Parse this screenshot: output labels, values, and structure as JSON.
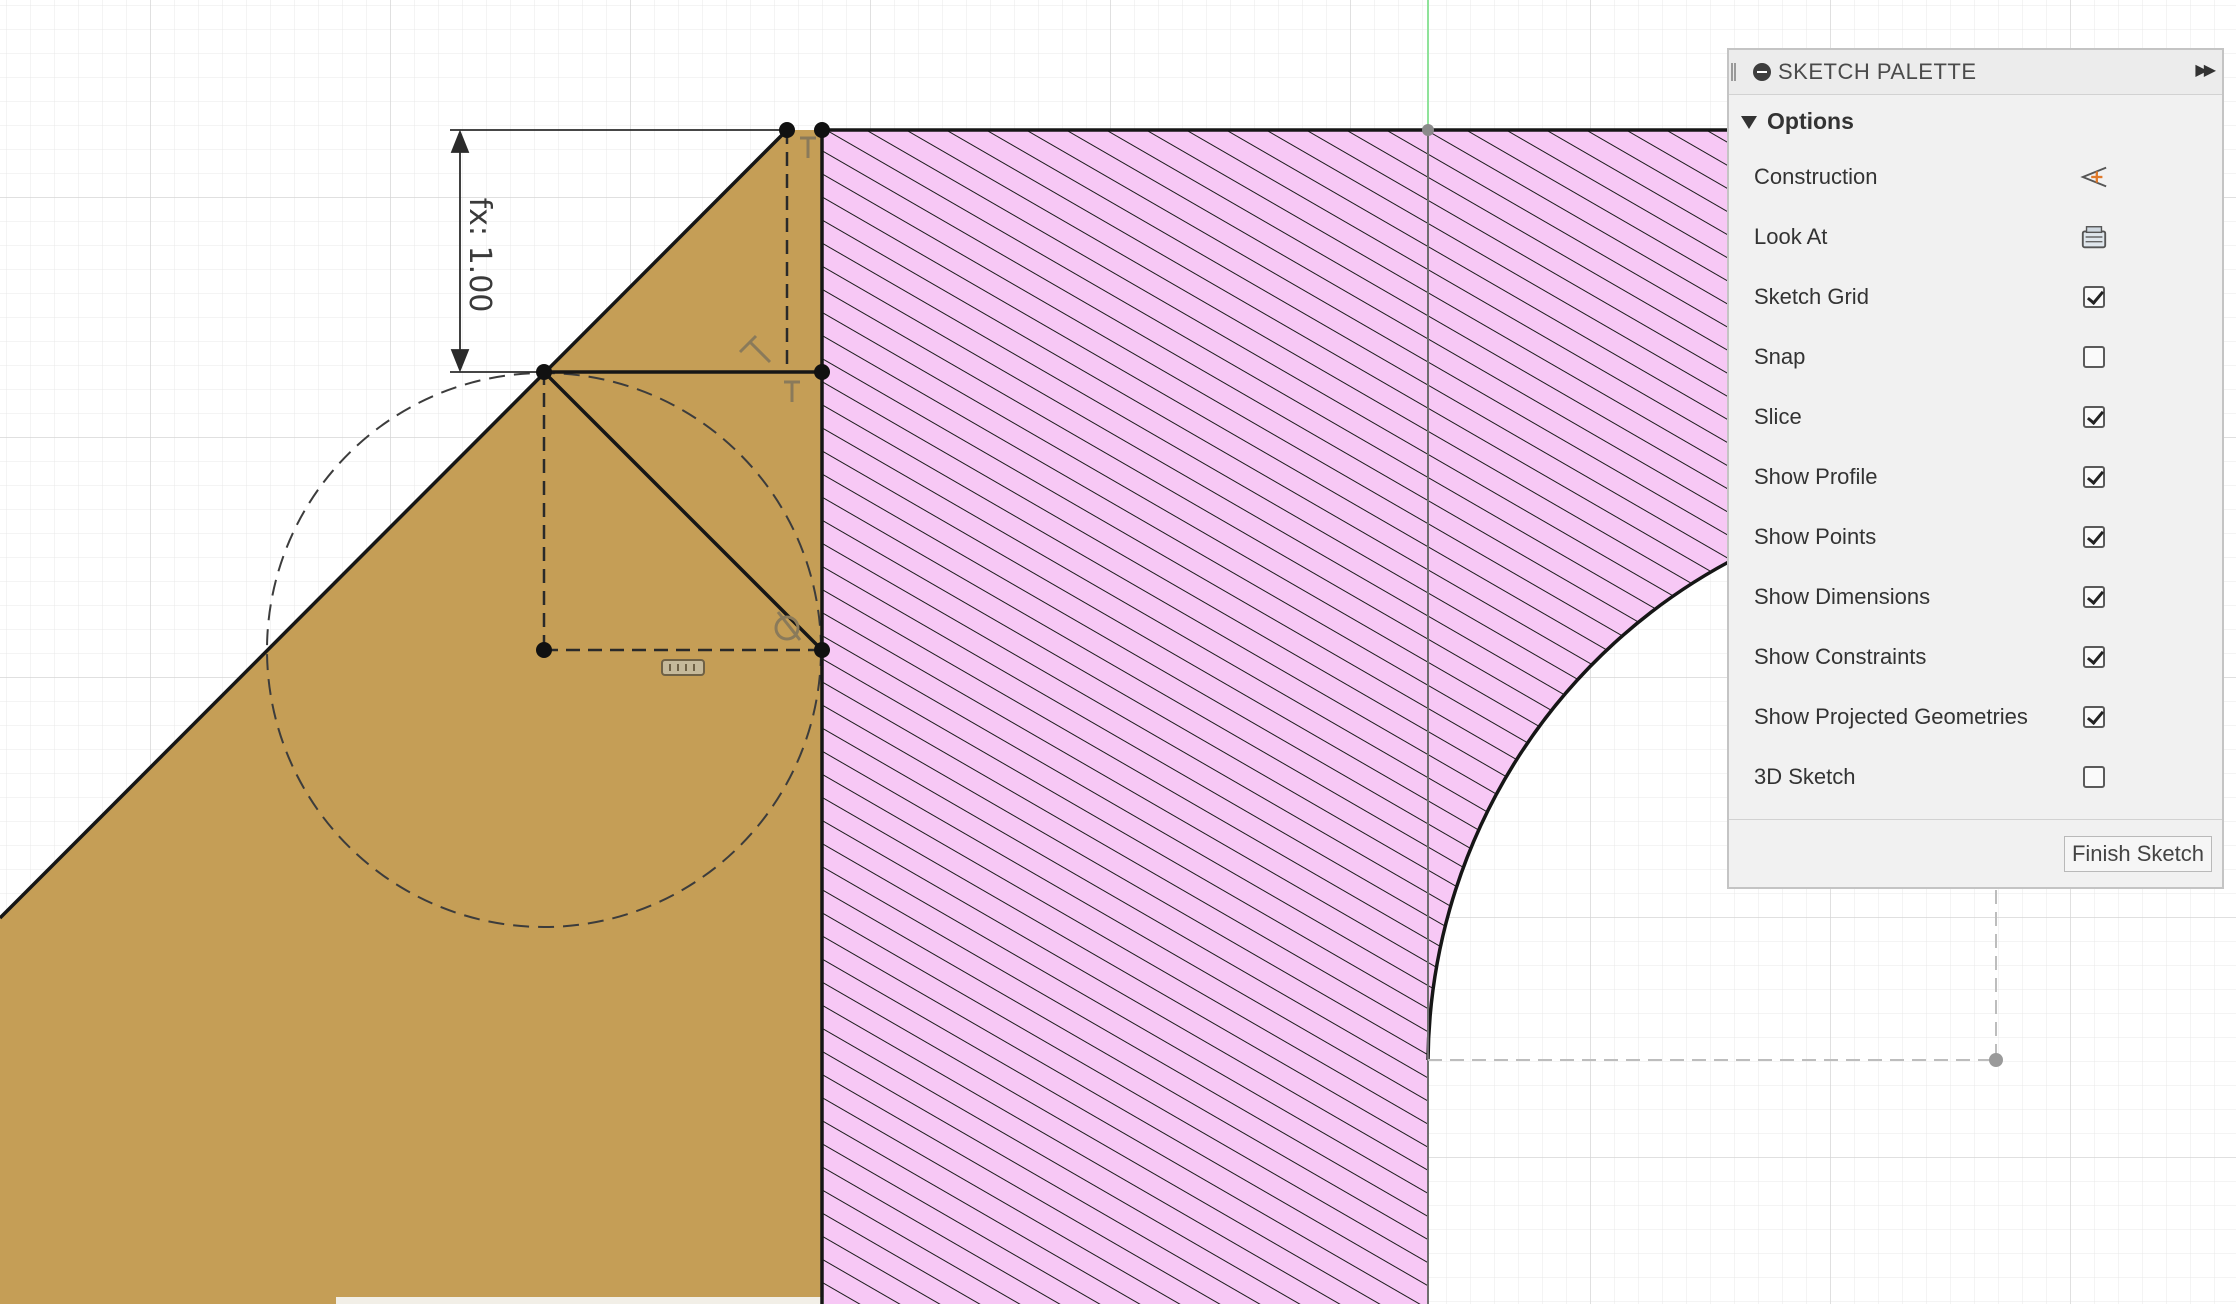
{
  "viewport": {
    "dimension_label": "fx: 1.00",
    "colors": {
      "background": "#ffffff",
      "grid": "#e7e7e7",
      "grid_major": "#d5d5d5",
      "profile_fill": "#c49c53",
      "hatch_fill": "#f7c8f5",
      "geometry": "#161616",
      "axis_line": "#7fdc8a"
    },
    "icons": [
      "tangent-constraint-icon",
      "coincident-constraint-icon",
      "horizontal-constraint-icon"
    ]
  },
  "palette": {
    "title": "SKETCH PALETTE",
    "section": "Options",
    "options": [
      {
        "name": "construction",
        "label": "Construction",
        "control": "icon",
        "icon": "construction-icon"
      },
      {
        "name": "look-at",
        "label": "Look At",
        "control": "icon",
        "icon": "look-at-icon"
      },
      {
        "name": "sketch-grid",
        "label": "Sketch Grid",
        "control": "checkbox",
        "checked": true
      },
      {
        "name": "snap",
        "label": "Snap",
        "control": "checkbox",
        "checked": false
      },
      {
        "name": "slice",
        "label": "Slice",
        "control": "checkbox",
        "checked": true
      },
      {
        "name": "show-profile",
        "label": "Show Profile",
        "control": "checkbox",
        "checked": true
      },
      {
        "name": "show-points",
        "label": "Show Points",
        "control": "checkbox",
        "checked": true
      },
      {
        "name": "show-dimensions",
        "label": "Show Dimensions",
        "control": "checkbox",
        "checked": true
      },
      {
        "name": "show-constraints",
        "label": "Show Constraints",
        "control": "checkbox",
        "checked": true
      },
      {
        "name": "show-projected-geometries",
        "label": "Show Projected Geometries",
        "control": "checkbox",
        "checked": true
      },
      {
        "name": "3d-sketch",
        "label": "3D Sketch",
        "control": "checkbox",
        "checked": false
      }
    ],
    "finish_label": "Finish Sketch"
  }
}
